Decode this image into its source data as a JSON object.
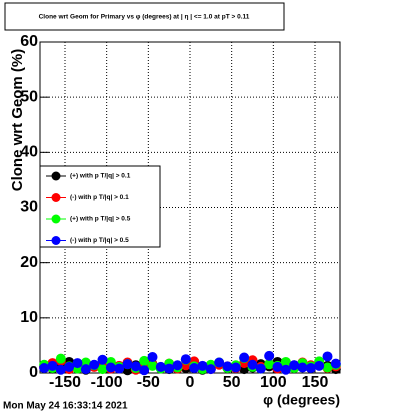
{
  "chart_data": {
    "type": "scatter",
    "title": "Clone wrt Geom for Primary vs φ (degrees) at | η | <= 1.0 at pT > 0.11",
    "x_label": "φ (degrees)",
    "y_label": "Clone wrt Geom (%)",
    "footer": "Mon May 24 16:33:14 2021",
    "x": [
      -175,
      -165,
      -155,
      -145,
      -135,
      -125,
      -115,
      -105,
      -95,
      -85,
      -75,
      -65,
      -55,
      -45,
      -35,
      -25,
      -15,
      -5,
      5,
      15,
      25,
      35,
      45,
      55,
      65,
      75,
      85,
      95,
      105,
      115,
      125,
      135,
      145,
      155,
      165,
      175
    ],
    "series": [
      {
        "name": "(+) with p T/|q| > 0.1",
        "color": "#000000",
        "values": [
          1.2,
          0.8,
          1.5,
          2.0,
          1.0,
          0.6,
          1.3,
          0.9,
          1.7,
          1.1,
          0.5,
          1.4,
          0.8,
          1.6,
          1.0,
          0.7,
          1.2,
          0.9,
          1.5,
          0.6,
          1.1,
          1.8,
          0.9,
          1.3,
          0.7,
          1.0,
          1.6,
          1.2,
          2.0,
          0.8,
          1.4,
          1.1,
          0.9,
          1.5,
          1.3,
          0.7
        ]
      },
      {
        "name": "(-) with p T/|q| > 0.1",
        "color": "#ff0000",
        "values": [
          1.0,
          1.8,
          2.2,
          0.7,
          1.4,
          0.9,
          1.1,
          1.6,
          0.8,
          1.3,
          1.9,
          0.6,
          1.2,
          1.5,
          0.9,
          1.7,
          0.8,
          1.4,
          2.1,
          1.0,
          0.7,
          1.5,
          1.2,
          0.9,
          1.8,
          2.3,
          1.1,
          1.6,
          0.8,
          1.3,
          1.0,
          1.9,
          1.4,
          1.7,
          0.9,
          1.2
        ]
      },
      {
        "name": "(+) with p T/|q| > 0.5",
        "color": "#00ff00",
        "values": [
          1.5,
          0.9,
          2.6,
          1.2,
          0.8,
          1.9,
          1.4,
          0.7,
          2.0,
          1.1,
          1.6,
          0.9,
          2.2,
          1.3,
          0.8,
          1.7,
          1.0,
          2.4,
          1.2,
          0.7,
          1.5,
          1.9,
          0.9,
          1.4,
          2.7,
          1.1,
          0.8,
          1.6,
          1.3,
          2.0,
          0.9,
          1.8,
          1.2,
          2.1,
          1.0,
          1.5
        ]
      },
      {
        "name": "(-) with p T/|q| > 0.5",
        "color": "#0000ff",
        "values": [
          0.9,
          1.3,
          0.6,
          1.1,
          1.8,
          0.7,
          1.5,
          2.4,
          1.0,
          0.8,
          1.6,
          1.2,
          0.5,
          2.9,
          1.1,
          0.8,
          1.4,
          2.5,
          0.9,
          1.3,
          0.7,
          1.9,
          1.2,
          1.0,
          2.8,
          1.5,
          0.8,
          3.1,
          1.1,
          0.6,
          1.4,
          1.0,
          0.9,
          1.3,
          3.0,
          1.7
        ]
      }
    ],
    "xlim": [
      -180,
      180
    ],
    "xticks": [
      -150,
      -100,
      -50,
      0,
      50,
      100,
      150
    ],
    "ylim": [
      0,
      60
    ],
    "yticks": [
      0,
      10,
      20,
      30,
      40,
      50,
      60
    ],
    "grid": true,
    "legend": "left"
  }
}
